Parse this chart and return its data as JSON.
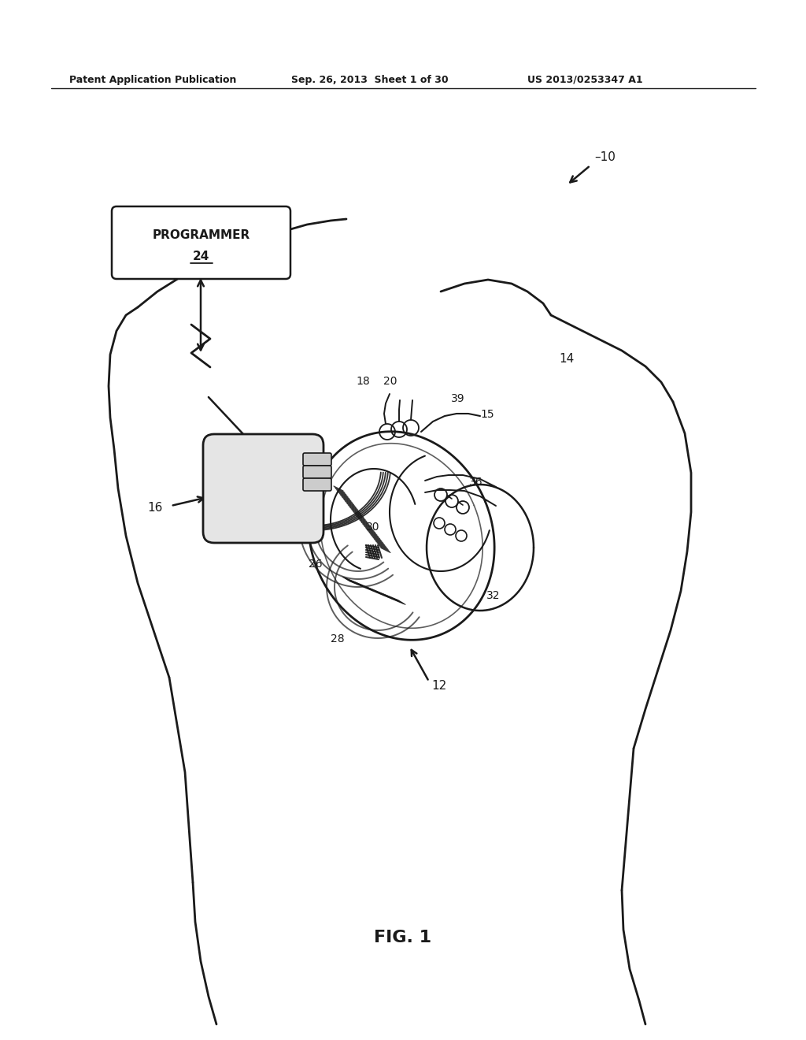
{
  "bg_color": "#ffffff",
  "title": "FIG. 1",
  "header_left": "Patent Application Publication",
  "header_mid": "Sep. 26, 2013  Sheet 1 of 30",
  "header_right": "US 2013/0253347 A1",
  "fig_width": 10.24,
  "fig_height": 13.2,
  "dpi": 100,
  "lc": "#1a1a1a"
}
